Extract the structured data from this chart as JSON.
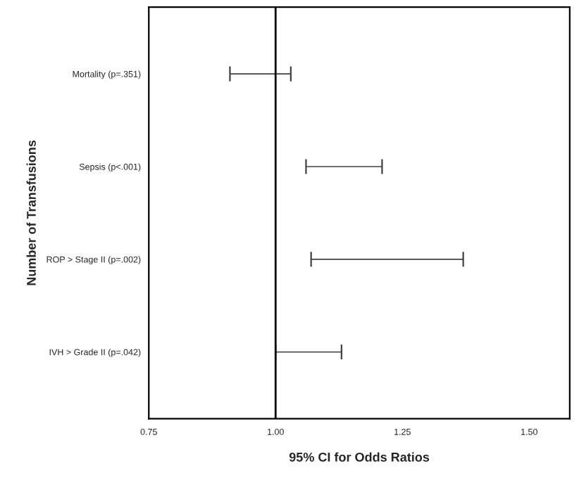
{
  "chart_data": {
    "type": "bar",
    "orientation": "horizontal",
    "categories": [
      "Mortality (p=.351)",
      "Sepsis (p<.001)",
      "ROP > Stage II (p=.002)",
      "IVH > Grade II (p=.042)"
    ],
    "base": [
      0.91,
      1.06,
      1.07,
      1.0
    ],
    "values": [
      0.12,
      0.15,
      0.3,
      0.13
    ],
    "color": "#404040",
    "xlabel": "95% CI for Odds Ratios",
    "ylabel": "Number of Transfusions",
    "xlim": [
      0.75,
      1.58
    ],
    "xticks": [
      {
        "value": 0.75,
        "label": "0.75"
      },
      {
        "value": 1.0,
        "label": "1.00"
      },
      {
        "value": 1.25,
        "label": "1.25"
      },
      {
        "value": 1.5,
        "label": "1.50"
      }
    ],
    "ref_lines": [
      {
        "axis": "x",
        "value": 1.0,
        "color": "#000000"
      }
    ],
    "grid": false,
    "legend": false
  }
}
